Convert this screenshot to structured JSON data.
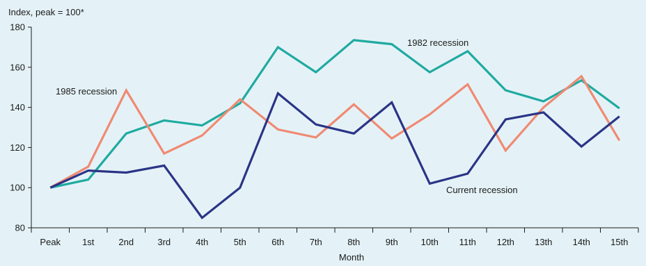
{
  "chart_data": {
    "type": "line",
    "ylabel": "Index, peak = 100*",
    "xlabel": "Month",
    "categories": [
      "Peak",
      "1st",
      "2nd",
      "3rd",
      "4th",
      "5th",
      "6th",
      "7th",
      "8th",
      "9th",
      "10th",
      "11th",
      "12th",
      "13th",
      "14th",
      "15th"
    ],
    "ylim": [
      80,
      180
    ],
    "yticks": [
      80,
      100,
      120,
      140,
      160,
      180
    ],
    "grid": false,
    "legend": "none",
    "series": [
      {
        "name": "1982 recession",
        "color": "#1faaa0",
        "values": [
          100,
          104,
          127,
          133.5,
          131,
          142,
          170,
          157.5,
          173.5,
          171.5,
          157.5,
          168,
          148.5,
          143,
          153.5,
          139.5
        ]
      },
      {
        "name": "1985 recession",
        "color": "#f08a72",
        "values": [
          100,
          110.5,
          148.5,
          117,
          126,
          144,
          129,
          125,
          141.5,
          124.5,
          136.5,
          151.5,
          118.5,
          140,
          155.5,
          123.5
        ]
      },
      {
        "name": "Current recession",
        "color": "#2b3486",
        "values": [
          100,
          108.5,
          107.5,
          111,
          85,
          100,
          147,
          131.5,
          127,
          142.5,
          102,
          107,
          134,
          137.5,
          120.5,
          135.5
        ]
      }
    ],
    "annotations": [
      {
        "text": "1982 recession",
        "series": "1982 recession"
      },
      {
        "text": "1985 recession",
        "series": "1985 recession"
      },
      {
        "text": "Current recession",
        "series": "Current recession"
      }
    ]
  }
}
